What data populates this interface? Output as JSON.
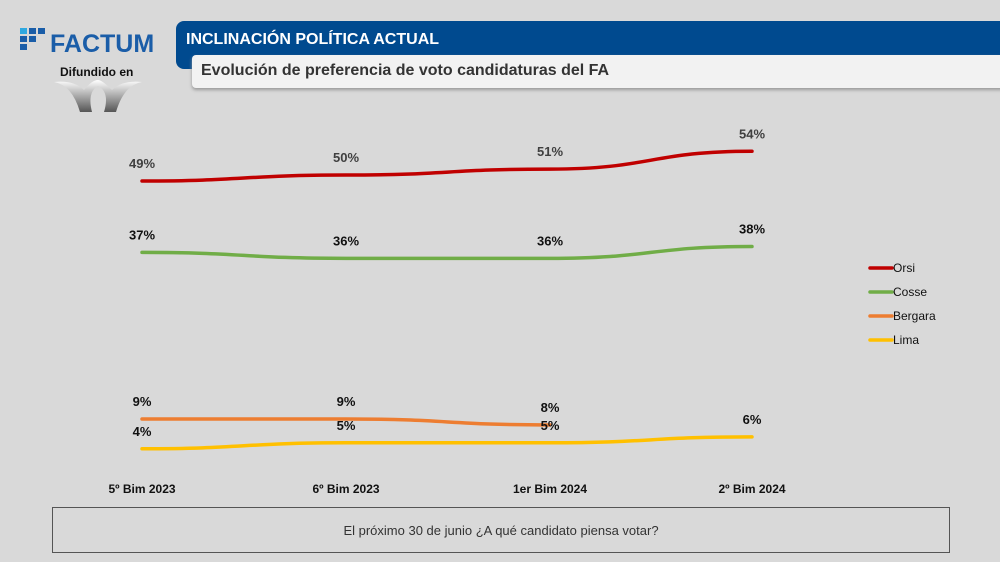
{
  "brand": {
    "name": "FACTUM",
    "difundido": "Difundido en"
  },
  "header": {
    "title": "INCLINACIÓN POLÍTICA ACTUAL",
    "subtitle": "Evolución de preferencia de voto candidaturas del FA"
  },
  "question": "El próximo 30 de junio ¿A qué candidato piensa votar?",
  "chart_data": {
    "type": "line",
    "categories": [
      "5º Bim 2023",
      "6º Bim 2023",
      "1er Bim 2024",
      "2º Bim 2024"
    ],
    "series": [
      {
        "name": "Orsi",
        "color": "#c00000",
        "values": [
          49,
          50,
          51,
          54
        ],
        "labels": [
          "49%",
          "50%",
          "51%",
          "54%"
        ]
      },
      {
        "name": "Cosse",
        "color": "#70ad47",
        "values": [
          37,
          36,
          36,
          38
        ],
        "labels": [
          "37%",
          "36%",
          "36%",
          "38%"
        ]
      },
      {
        "name": "Bergara",
        "color": "#ed7d31",
        "values": [
          9,
          9,
          8,
          null
        ],
        "labels": [
          "9%",
          "9%",
          "8%",
          ""
        ]
      },
      {
        "name": "Lima",
        "color": "#ffc000",
        "values": [
          4,
          5,
          5,
          6
        ],
        "labels": [
          "4%",
          "5%",
          "5%",
          "6%"
        ]
      }
    ],
    "legend": "right",
    "grid": false
  }
}
